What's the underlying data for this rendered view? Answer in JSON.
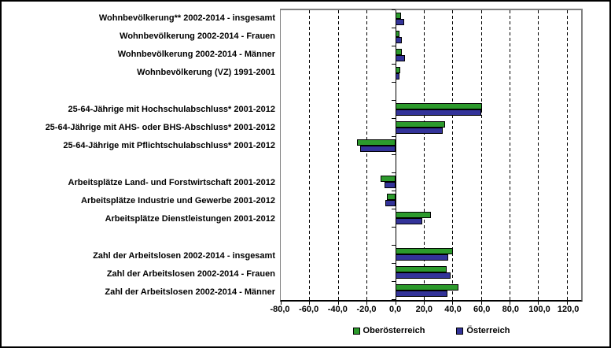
{
  "chart_data": {
    "type": "bar",
    "orientation": "horizontal",
    "title": "",
    "categories": [
      "Wohnbevölkerung** 2002-2014 - insgesamt",
      "Wohnbevölkerung 2002-2014 - Frauen",
      "Wohnbevölkerung 2002-2014 - Männer",
      "Wohnbevölkerung (VZ) 1991-2001",
      "25-64-Jährige mit Hochschulabschluss* 2001-2012",
      "25-64-Jährige mit AHS- oder BHS-Abschluss* 2001-2012",
      "25-64-Jährige mit Pflichtschulabschluss* 2001-2012",
      "Arbeitsplätze Land- und Forstwirtschaft 2001-2012",
      "Arbeitsplätze Industrie und Gewerbe 2001-2012",
      "Arbeitsplätze Dienstleistungen 2001-2012",
      "Zahl der Arbeitslosen 2002-2014 - insgesamt",
      "Zahl der Arbeitslosen 2002-2014 - Frauen",
      "Zahl der Arbeitslosen 2002-2014 - Männer"
    ],
    "series": [
      {
        "name": "Oberösterreich",
        "color": "#2C9A2C",
        "values": [
          4.0,
          2.8,
          4.4,
          3.3,
          60.5,
          35.0,
          -26.5,
          -10.0,
          -5.8,
          25.0,
          40.5,
          36.0,
          44.5
        ]
      },
      {
        "name": "Österreich",
        "color": "#333399",
        "values": [
          6.3,
          4.8,
          6.7,
          3.1,
          60.0,
          33.0,
          -24.5,
          -7.6,
          -7.0,
          19.0,
          37.0,
          38.5,
          36.5
        ]
      }
    ],
    "row_layout": [
      0,
      1,
      2,
      3,
      null,
      4,
      5,
      6,
      null,
      7,
      8,
      9,
      null,
      10,
      11,
      12
    ],
    "xlim": [
      -80,
      130
    ],
    "xtick_values": [
      -80,
      -60,
      -40,
      -20,
      0,
      20,
      40,
      60,
      80,
      100,
      120
    ],
    "xtick_labels": [
      "-80,0",
      "-60,0",
      "-40,0",
      "-20,0",
      "0,0",
      "20,0",
      "40,0",
      "60,0",
      "80,0",
      "100,0",
      "120,0"
    ],
    "grid": "vertical-dashed",
    "legend_position": "bottom",
    "colors": {
      "plot_border": "#808080",
      "axis": "#000000",
      "background": "#ffffff"
    }
  }
}
